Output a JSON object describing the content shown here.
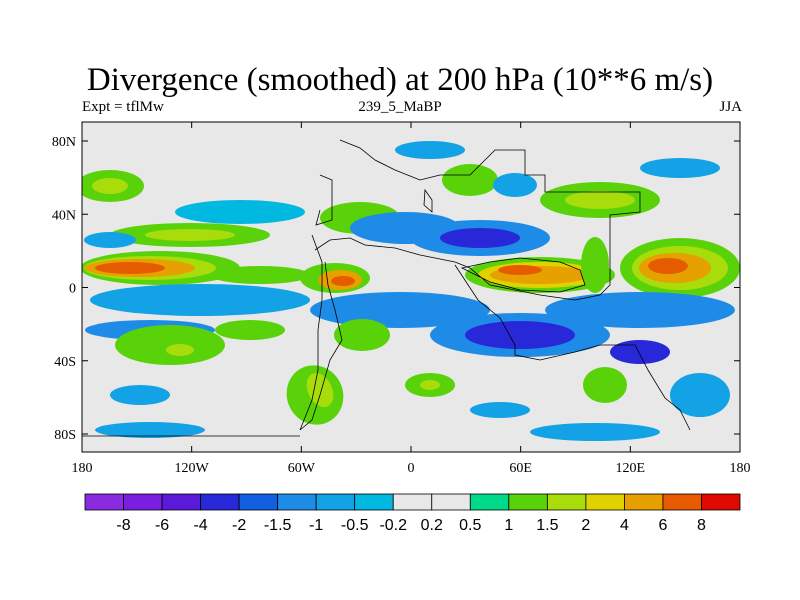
{
  "title": "Divergence (smoothed) at 200 hPa (10**6 m/s)",
  "left_label": "Expt = tflMw",
  "center_label": "239_5_MaBP",
  "right_label": "JJA",
  "chart_data": {
    "type": "heatmap",
    "title": "Divergence (smoothed) at 200 hPa (10**6 m/s)",
    "xlabel": "",
    "ylabel": "",
    "x_range": [
      -180,
      180
    ],
    "y_range": [
      -90,
      90
    ],
    "x_ticks": [
      "180",
      "120W",
      "60W",
      "0",
      "60E",
      "120E",
      "180"
    ],
    "y_ticks": [
      "80N",
      "40N",
      "0",
      "40S",
      "80S"
    ],
    "colorbar_labels": [
      "-8",
      "-6",
      "-4",
      "-2",
      "-1.5",
      "-1",
      "-0.5",
      "-0.2",
      "0.2",
      "0.5",
      "1",
      "1.5",
      "2",
      "4",
      "6",
      "8"
    ],
    "colorbar_colors": [
      "#8a2be2",
      "#7a1ee0",
      "#5a1ad8",
      "#2828d8",
      "#1060e0",
      "#1e8ce6",
      "#14a2e6",
      "#00b8e0",
      "#e8e8e8",
      "#00d88a",
      "#5ad20a",
      "#a8dc0a",
      "#e0d200",
      "#e6a000",
      "#e65a00",
      "#e00a00"
    ],
    "neutral_color": "#e8e8e8"
  }
}
